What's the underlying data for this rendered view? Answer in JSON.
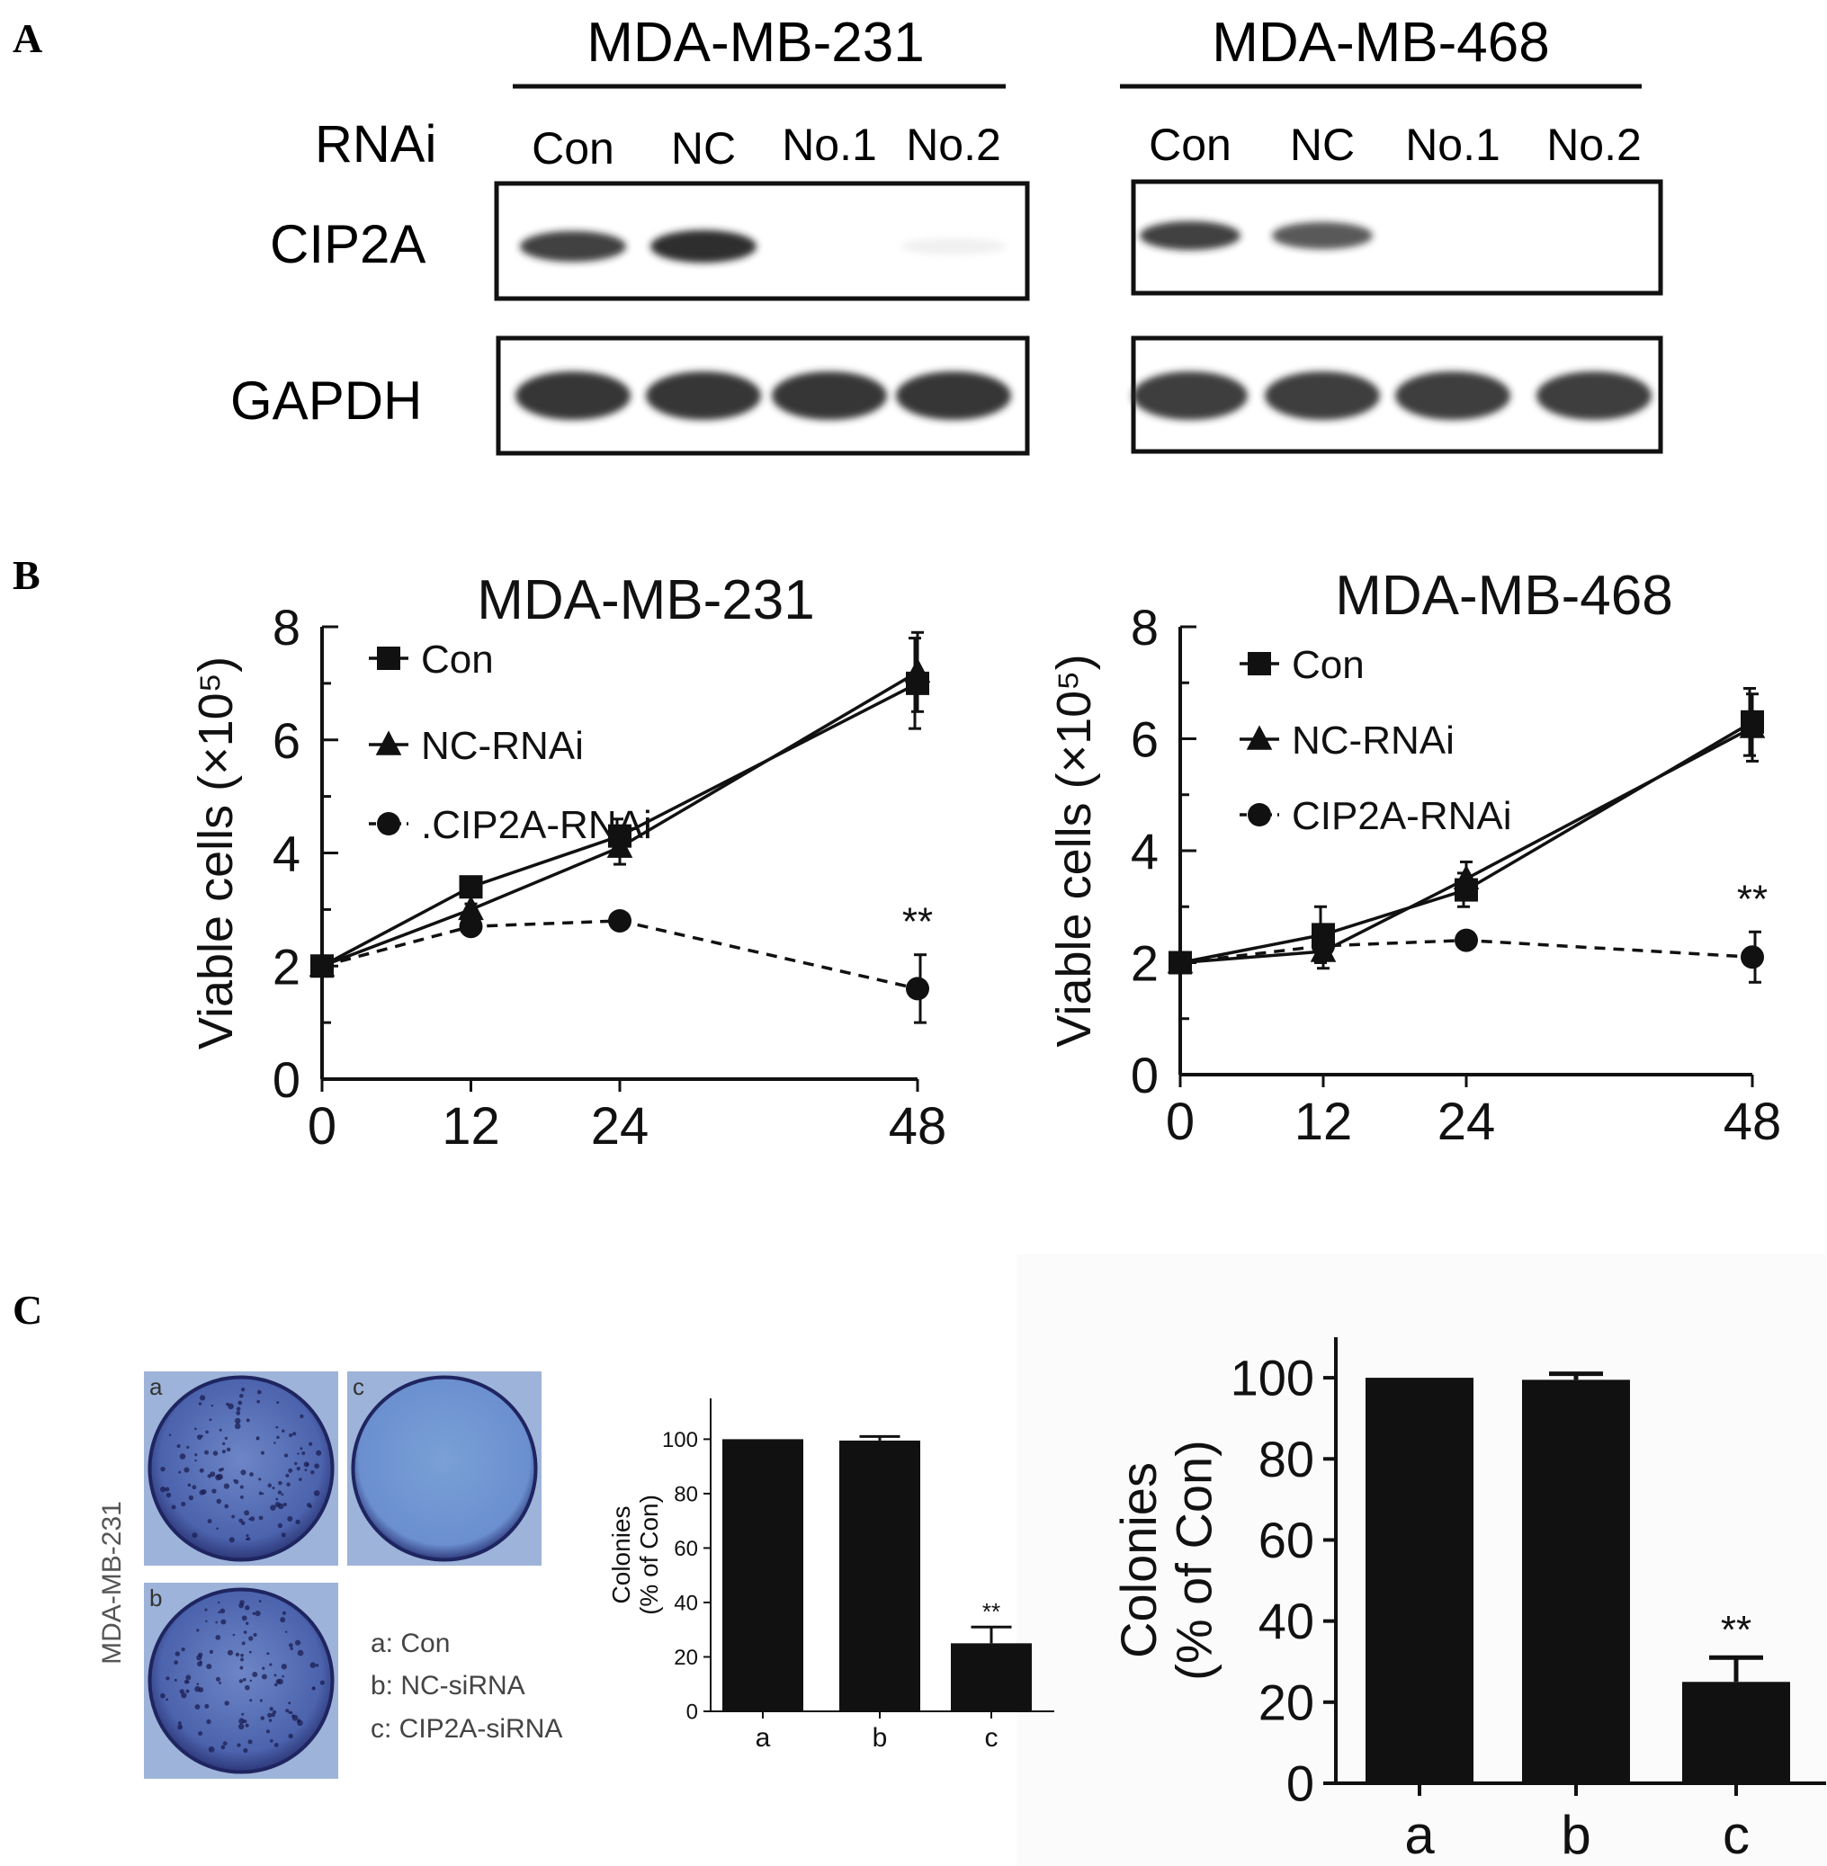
{
  "panels": {
    "A": "A",
    "B": "B",
    "C": "C"
  },
  "western_blot": {
    "row_labels": {
      "rnai": "RNAi",
      "target": "CIP2A",
      "loading": "GAPDH"
    },
    "blots": [
      {
        "cell_line": "MDA-MB-231",
        "lanes": [
          "Con",
          "NC",
          "No.1",
          "No.2"
        ],
        "cip2a_intensity": [
          0.85,
          0.95,
          0.0,
          0.06
        ],
        "gapdh_intensity": [
          0.95,
          0.95,
          0.95,
          0.95
        ]
      },
      {
        "cell_line": "MDA-MB-468",
        "lanes": [
          "Con",
          "NC",
          "No.1",
          "No.2"
        ],
        "cip2a_intensity": [
          0.85,
          0.75,
          0.0,
          0.0
        ],
        "gapdh_intensity": [
          0.9,
          0.9,
          0.9,
          0.9
        ]
      }
    ]
  },
  "colors": {
    "ink": "#111111",
    "plate_blue": "#3f4f9e",
    "plate_light": "#5b77bb",
    "background": "#ffffff"
  },
  "chart_data": [
    {
      "type": "line",
      "title": "MDA-MB-231",
      "xlabel": "",
      "ylabel": "Viable cells (×10⁵)",
      "x": [
        0,
        12,
        24,
        48
      ],
      "x_ticks": [
        "0",
        "12",
        "24",
        "48"
      ],
      "y_ticks": [
        "0",
        "2",
        "4",
        "6",
        "8"
      ],
      "ylim": [
        0,
        8
      ],
      "legend_position": "top-left",
      "significance": {
        "x": 48,
        "label": "**"
      },
      "series": [
        {
          "name": "Con",
          "marker": "square",
          "dash": false,
          "values": [
            2.0,
            3.4,
            4.3,
            7.0
          ],
          "errors": [
            0,
            0.1,
            0.3,
            0.8
          ]
        },
        {
          "name": "NC-RNAi",
          "marker": "triangle",
          "dash": false,
          "values": [
            2.0,
            3.0,
            4.1,
            7.2
          ],
          "errors": [
            0,
            0.1,
            0.3,
            0.7
          ]
        },
        {
          "name": ".CIP2A-RNAi",
          "marker": "circle",
          "dash": true,
          "values": [
            2.0,
            2.7,
            2.8,
            1.6
          ],
          "errors": [
            0,
            0.1,
            0.1,
            0.6
          ]
        }
      ]
    },
    {
      "type": "line",
      "title": "MDA-MB-468",
      "xlabel": "",
      "ylabel": "Viable cells (×10⁵)",
      "x": [
        0,
        12,
        24,
        48
      ],
      "x_ticks": [
        "0",
        "12",
        "24",
        "48"
      ],
      "y_ticks": [
        "0",
        "2",
        "4",
        "6",
        "8"
      ],
      "ylim": [
        0,
        8
      ],
      "legend_position": "top-left",
      "significance": {
        "x": 48,
        "label": "**"
      },
      "series": [
        {
          "name": "Con",
          "marker": "square",
          "dash": false,
          "values": [
            2.0,
            2.5,
            3.3,
            6.3
          ],
          "errors": [
            0,
            0.5,
            0.3,
            0.6
          ]
        },
        {
          "name": "NC-RNAi",
          "marker": "triangle",
          "dash": false,
          "values": [
            2.0,
            2.2,
            3.5,
            6.2
          ],
          "errors": [
            0,
            0.3,
            0.3,
            0.6
          ]
        },
        {
          "name": "CIP2A-RNAi",
          "marker": "circle",
          "dash": true,
          "values": [
            2.0,
            2.3,
            2.4,
            2.1
          ],
          "errors": [
            0,
            0.1,
            0.1,
            0.45
          ]
        }
      ]
    },
    {
      "type": "bar",
      "title": "",
      "xlabel": "",
      "ylabel": "Colonies (% of Con)",
      "categories": [
        "a",
        "b",
        "c"
      ],
      "values": [
        100,
        99.5,
        25
      ],
      "errors": [
        0,
        1.5,
        6
      ],
      "y_ticks": [
        "0",
        "20",
        "40",
        "60",
        "80",
        "100"
      ],
      "ylim": [
        0,
        115
      ],
      "significance": {
        "category": "c",
        "label": "**"
      }
    },
    {
      "type": "bar",
      "title": "",
      "xlabel": "",
      "ylabel": "Colonies (% of Con)",
      "categories": [
        "a",
        "b",
        "c"
      ],
      "values": [
        100,
        99.5,
        25
      ],
      "errors": [
        0,
        1.5,
        6
      ],
      "y_ticks": [
        "0",
        "20",
        "40",
        "60",
        "80",
        "100"
      ],
      "ylim": [
        0,
        110
      ],
      "significance": {
        "category": "c",
        "label": "**"
      }
    }
  ],
  "colony_assay": {
    "cell_line": "MDA-MB-231",
    "plates": [
      {
        "label": "a",
        "colony_density": 0.9
      },
      {
        "label": "c",
        "colony_density": 0.0
      },
      {
        "label": "b",
        "colony_density": 0.85
      }
    ],
    "key": [
      "a: Con",
      "b: NC-siRNA",
      "c: CIP2A-siRNA"
    ]
  }
}
